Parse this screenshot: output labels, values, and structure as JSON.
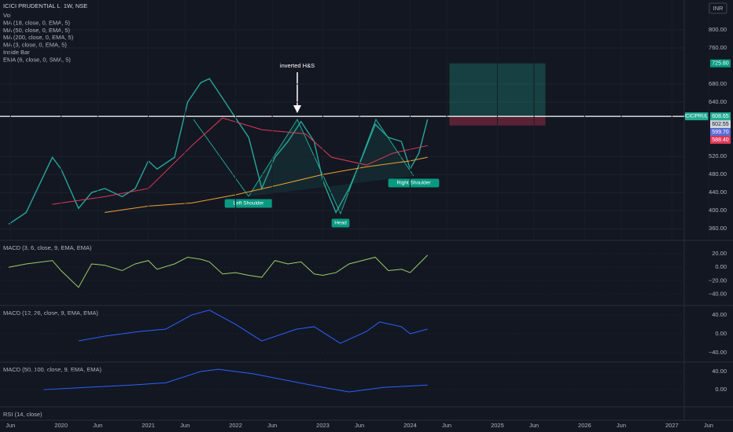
{
  "chart_data": [
    {
      "type": "line",
      "title": "ICICI PRUDENTIAL L, 1W, NSE",
      "currency": "INR",
      "indicators": [
        "Vol",
        "MA (18, close, 0, EMA, 5)",
        "MA (50, close, 0, EMA, 5)",
        "MA (200, close, 0, EMA, 5)",
        "MA (3, close, 0, EMA, 5)",
        "Inside Bar",
        "EMA (6, close, 0, SMA, 5)"
      ],
      "x": [
        2019.4,
        2019.6,
        2019.9,
        2020.0,
        2020.2,
        2020.35,
        2020.5,
        2020.7,
        2020.85,
        2021.0,
        2021.1,
        2021.3,
        2021.45,
        2021.6,
        2021.7,
        2021.85,
        2022.0,
        2022.15,
        2022.3,
        2022.45,
        2022.6,
        2022.75,
        2022.9,
        2023.0,
        2023.15,
        2023.3,
        2023.45,
        2023.6,
        2023.75,
        2023.9,
        2024.0,
        2024.1,
        2024.2
      ],
      "values": [
        370,
        396,
        518,
        492,
        405,
        440,
        449,
        431,
        449,
        510,
        492,
        518,
        640,
        683,
        692,
        649,
        605,
        562,
        449,
        518,
        553,
        597,
        553,
        466,
        396,
        449,
        518,
        591,
        562,
        553,
        492,
        527,
        602
      ],
      "color": "#26a69a",
      "series": [
        {
          "name": "MA (200, close, 0, EMA, 5)",
          "color": "#f0a030",
          "x": [
            2020.5,
            2021.0,
            2021.5,
            2022.0,
            2022.5,
            2023.0,
            2023.5,
            2024.0,
            2024.2
          ],
          "values": [
            396,
            410,
            417,
            435,
            457,
            480,
            497,
            510,
            518
          ]
        },
        {
          "name": "MA (50, close, 0, EMA, 5)",
          "color": "#e0395a",
          "x": [
            2019.9,
            2020.5,
            2021.0,
            2021.5,
            2021.85,
            2022.3,
            2022.8,
            2023.1,
            2023.5,
            2023.8,
            2024.2
          ],
          "values": [
            414,
            431,
            449,
            544,
            605,
            579,
            570,
            518,
            501,
            527,
            544
          ]
        }
      ],
      "xlim": [
        2019.3,
        2027.7
      ],
      "xticks": [
        {
          "value": 2019.42,
          "label": "Jun"
        },
        2020,
        {
          "value": 2020.42,
          "label": "Jun"
        },
        2021,
        {
          "value": 2021.42,
          "label": "Jun"
        },
        2022,
        {
          "value": 2022.42,
          "label": "Jun"
        },
        2023,
        {
          "value": 2023.42,
          "label": "Jun"
        },
        2024,
        {
          "value": 2024.42,
          "label": "Jun"
        },
        2025,
        {
          "value": 2025.42,
          "label": "Jun"
        },
        2026,
        {
          "value": 2026.42,
          "label": "Jun"
        },
        2027,
        {
          "value": 2027.42,
          "label": "Jun"
        }
      ],
      "ylim": [
        336,
        866
      ],
      "yticks": [
        {
          "value": 360,
          "label": "360.00"
        },
        {
          "value": 400,
          "label": "400.00"
        },
        {
          "value": 440,
          "label": "440.00"
        },
        {
          "value": 480,
          "label": "480.00"
        },
        {
          "value": 520,
          "label": "520.00"
        },
        {
          "value": 640,
          "label": "640.00"
        },
        {
          "value": 680,
          "label": "680.00"
        },
        {
          "value": 760,
          "label": "760.00"
        },
        {
          "value": 800,
          "label": "800.00"
        }
      ],
      "annotations": [
        "inverted H&S",
        "Left Shoulder",
        "Head",
        "Right Shoulder"
      ],
      "price_line": {
        "symbol": "ICICIPRULI",
        "value": 608.65,
        "label": "608.65",
        "color": "#22ab94"
      },
      "price_labels": [
        {
          "value": 725.8,
          "label": "725.80",
          "color": "#089981"
        },
        {
          "value": 602.55,
          "label": "602.55",
          "color": "#d1d4dc"
        },
        {
          "value": 599.7,
          "label": "599.70",
          "color": "#5b6cd6"
        },
        {
          "value": 588.4,
          "label": "588.40",
          "color": "#e0395a"
        }
      ],
      "position": {
        "start": 2024.45,
        "end": 2025.55
      }
    },
    {
      "type": "line",
      "title": "MACD (3, 6, close, 9, EMA, EMA)",
      "color": "#9ccc65",
      "x": [
        2019.4,
        2019.6,
        2019.9,
        2020.0,
        2020.2,
        2020.35,
        2020.5,
        2020.7,
        2020.85,
        2021.0,
        2021.1,
        2021.3,
        2021.45,
        2021.6,
        2021.7,
        2021.85,
        2022.0,
        2022.15,
        2022.3,
        2022.45,
        2022.6,
        2022.75,
        2022.9,
        2023.0,
        2023.15,
        2023.3,
        2023.45,
        2023.6,
        2023.75,
        2023.9,
        2024.0,
        2024.1,
        2024.2
      ],
      "values": [
        0,
        5,
        10,
        -5,
        -30,
        5,
        3,
        -5,
        5,
        10,
        -3,
        5,
        15,
        12,
        8,
        -10,
        -8,
        -12,
        -15,
        10,
        5,
        8,
        -10,
        -12,
        -8,
        5,
        10,
        15,
        -5,
        -3,
        -8,
        5,
        18
      ],
      "ylim": [
        -56,
        39
      ],
      "yticks": [
        {
          "value": 20,
          "label": "20.00"
        },
        {
          "value": 0,
          "label": "0.00"
        },
        {
          "value": -20,
          "label": "−20.00"
        },
        {
          "value": -40,
          "label": "−40.00"
        }
      ]
    },
    {
      "type": "line",
      "title": "MACD (12, 26, close, 9, EMA, EMA)",
      "color": "#2962ff",
      "x": [
        2020.2,
        2020.5,
        2020.9,
        2021.2,
        2021.5,
        2021.7,
        2022.0,
        2022.3,
        2022.7,
        2022.9,
        2023.2,
        2023.5,
        2023.65,
        2023.9,
        2024.0,
        2024.2
      ],
      "values": [
        -15,
        -5,
        5,
        10,
        40,
        50,
        20,
        -15,
        10,
        15,
        -20,
        5,
        25,
        15,
        0,
        10
      ],
      "ylim": [
        -58,
        58
      ],
      "yticks": [
        {
          "value": 40,
          "label": "40.00"
        },
        {
          "value": 0,
          "label": "0.00"
        },
        {
          "value": -40,
          "label": "−40.00"
        }
      ]
    },
    {
      "type": "line",
      "title": "MACD (50, 100, close, 9, EMA, EMA)",
      "color": "#2962ff",
      "x": [
        2019.8,
        2020.3,
        2020.8,
        2021.2,
        2021.6,
        2021.8,
        2022.2,
        2022.6,
        2023.0,
        2023.3,
        2023.7,
        2024.2
      ],
      "values": [
        0,
        5,
        10,
        15,
        40,
        45,
        35,
        20,
        5,
        -5,
        5,
        10
      ],
      "ylim": [
        -38,
        59
      ],
      "yticks": [
        {
          "value": 40,
          "label": "40.00"
        },
        {
          "value": 0,
          "label": "0.00"
        }
      ]
    },
    {
      "title": "RSI (14, close)"
    }
  ]
}
